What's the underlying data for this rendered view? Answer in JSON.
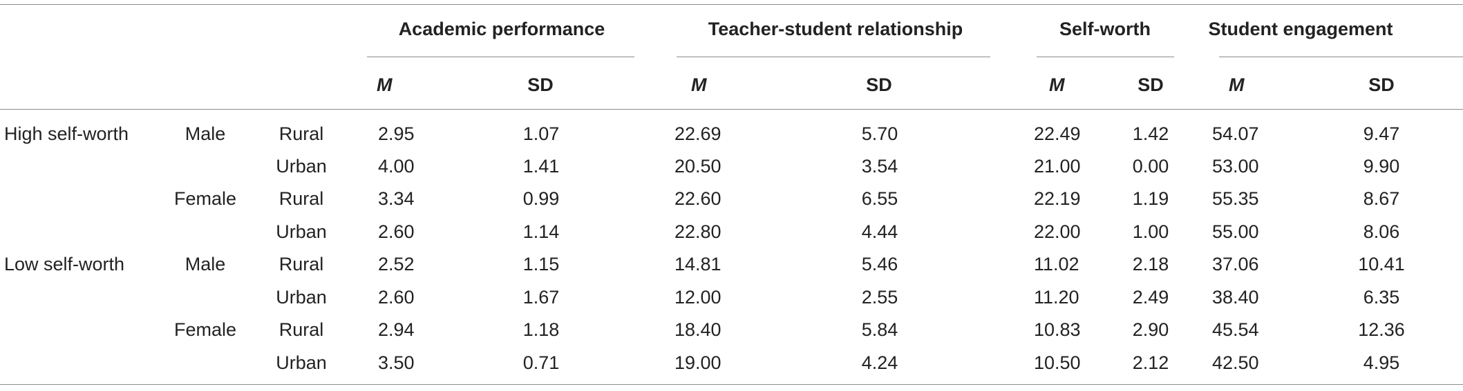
{
  "groups": [
    {
      "label": "Academic performance"
    },
    {
      "label": "Teacher-student relationship"
    },
    {
      "label": "Self-worth"
    },
    {
      "label": "Student engagement"
    }
  ],
  "subheaders": [
    "M",
    "SD",
    "M",
    "SD",
    "M",
    "SD",
    "M",
    "SD"
  ],
  "rows": [
    {
      "group": "High self-worth",
      "gender": "Male",
      "area": "Rural",
      "values": [
        "2.95",
        "1.07",
        "22.69",
        "5.70",
        "22.49",
        "1.42",
        "54.07",
        "9.47"
      ]
    },
    {
      "group": "",
      "gender": "",
      "area": "Urban",
      "values": [
        "4.00",
        "1.41",
        "20.50",
        "3.54",
        "21.00",
        "0.00",
        "53.00",
        "9.90"
      ]
    },
    {
      "group": "",
      "gender": "Female",
      "area": "Rural",
      "values": [
        "3.34",
        "0.99",
        "22.60",
        "6.55",
        "22.19",
        "1.19",
        "55.35",
        "8.67"
      ]
    },
    {
      "group": "",
      "gender": "",
      "area": "Urban",
      "values": [
        "2.60",
        "1.14",
        "22.80",
        "4.44",
        "22.00",
        "1.00",
        "55.00",
        "8.06"
      ]
    },
    {
      "group": "Low self-worth",
      "gender": "Male",
      "area": "Rural",
      "values": [
        "2.52",
        "1.15",
        "14.81",
        "5.46",
        "11.02",
        "2.18",
        "37.06",
        "10.41"
      ]
    },
    {
      "group": "",
      "gender": "",
      "area": "Urban",
      "values": [
        "2.60",
        "1.67",
        "12.00",
        "2.55",
        "11.20",
        "2.49",
        "38.40",
        "6.35"
      ]
    },
    {
      "group": "",
      "gender": "Female",
      "area": "Rural",
      "values": [
        "2.94",
        "1.18",
        "18.40",
        "5.84",
        "10.83",
        "2.90",
        "45.54",
        "12.36"
      ]
    },
    {
      "group": "",
      "gender": "",
      "area": "Urban",
      "values": [
        "3.50",
        "0.71",
        "19.00",
        "4.24",
        "10.50",
        "2.12",
        "42.50",
        "4.95"
      ]
    }
  ]
}
